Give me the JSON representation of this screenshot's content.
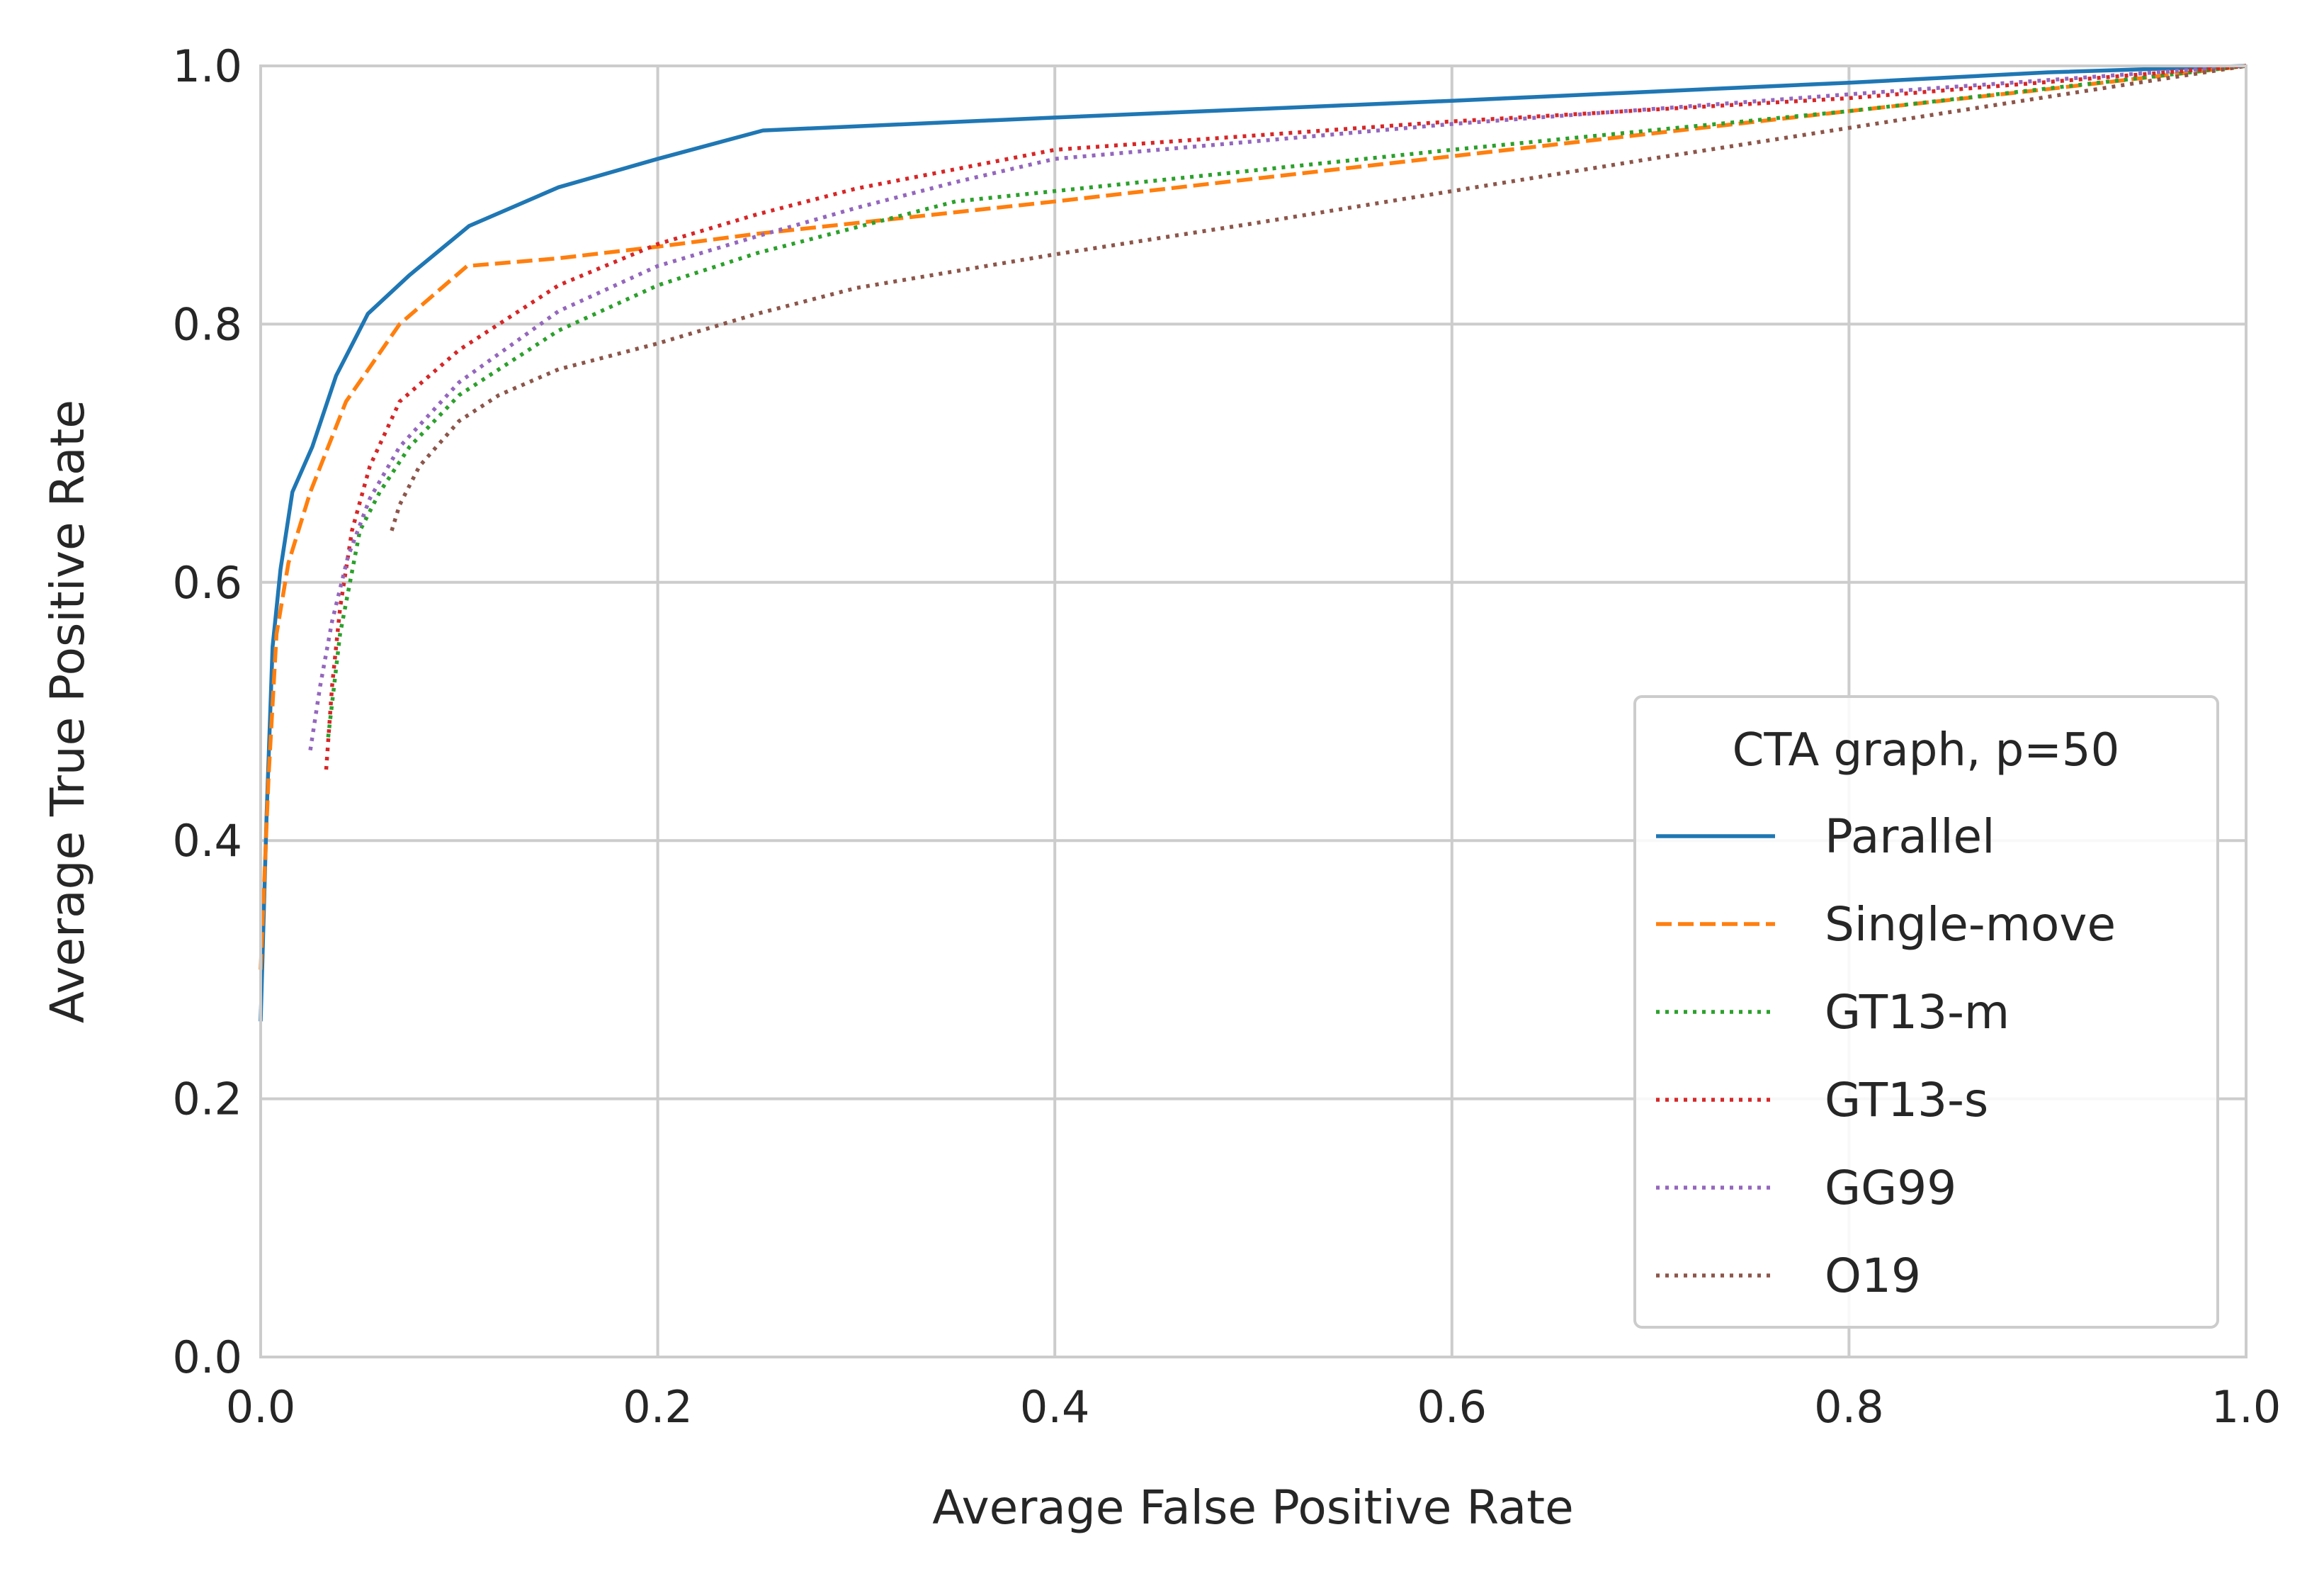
{
  "chart_data": {
    "type": "line",
    "title": "",
    "xlabel": "Average False Positive Rate",
    "ylabel": "Average True Positive Rate",
    "xlim": [
      0,
      1
    ],
    "ylim": [
      0,
      1
    ],
    "xticks": [
      "0.0",
      "0.2",
      "0.4",
      "0.6",
      "0.8",
      "1.0"
    ],
    "yticks": [
      "0.0",
      "0.2",
      "0.4",
      "0.6",
      "0.8",
      "1.0"
    ],
    "grid": true,
    "legend": {
      "title": "CTA graph, p=50",
      "position": "lower-right"
    },
    "series": [
      {
        "name": "Parallel",
        "color": "#1f77b4",
        "style": "solid",
        "x": [
          0.0,
          0.003,
          0.006,
          0.01,
          0.016,
          0.026,
          0.038,
          0.054,
          0.075,
          0.105,
          0.15,
          0.2,
          0.253,
          0.4,
          0.6,
          0.8,
          0.9,
          1.0
        ],
        "y": [
          0.26,
          0.42,
          0.55,
          0.61,
          0.67,
          0.705,
          0.76,
          0.808,
          0.838,
          0.876,
          0.906,
          0.928,
          0.95,
          0.96,
          0.973,
          0.987,
          0.995,
          1.0
        ]
      },
      {
        "name": "Single-move",
        "color": "#ff7f0e",
        "style": "dashed",
        "x": [
          0.0,
          0.004,
          0.008,
          0.014,
          0.025,
          0.043,
          0.07,
          0.104,
          0.15,
          0.2,
          0.25,
          0.4,
          0.6,
          0.8,
          0.9,
          1.0
        ],
        "y": [
          0.3,
          0.45,
          0.56,
          0.615,
          0.67,
          0.74,
          0.8,
          0.845,
          0.851,
          0.86,
          0.87,
          0.895,
          0.93,
          0.965,
          0.982,
          1.0
        ]
      },
      {
        "name": "GT13-m",
        "color": "#2ca02c",
        "style": "dotted",
        "x": [
          0.034,
          0.04,
          0.045,
          0.05,
          0.06,
          0.075,
          0.1,
          0.15,
          0.2,
          0.25,
          0.3,
          0.35,
          0.4,
          0.6,
          0.8,
          1.0
        ],
        "y": [
          0.48,
          0.56,
          0.6,
          0.64,
          0.67,
          0.705,
          0.745,
          0.795,
          0.83,
          0.855,
          0.875,
          0.895,
          0.903,
          0.935,
          0.965,
          1.0
        ]
      },
      {
        "name": "GT13-s",
        "color": "#d62728",
        "style": "dotted",
        "x": [
          0.033,
          0.036,
          0.04,
          0.046,
          0.055,
          0.07,
          0.1,
          0.15,
          0.2,
          0.25,
          0.3,
          0.35,
          0.4,
          0.6,
          0.8,
          1.0
        ],
        "y": [
          0.455,
          0.52,
          0.58,
          0.64,
          0.69,
          0.74,
          0.78,
          0.83,
          0.862,
          0.885,
          0.905,
          0.92,
          0.935,
          0.957,
          0.975,
          1.0
        ]
      },
      {
        "name": "GG99",
        "color": "#9467bd",
        "style": "dotted",
        "x": [
          0.025,
          0.03,
          0.036,
          0.044,
          0.055,
          0.07,
          0.1,
          0.15,
          0.2,
          0.25,
          0.3,
          0.35,
          0.4,
          0.6,
          0.8,
          1.0
        ],
        "y": [
          0.47,
          0.52,
          0.57,
          0.62,
          0.665,
          0.705,
          0.755,
          0.81,
          0.845,
          0.868,
          0.89,
          0.91,
          0.928,
          0.955,
          0.978,
          1.0
        ]
      },
      {
        "name": "O19",
        "color": "#8c564b",
        "style": "dotted",
        "x": [
          0.066,
          0.07,
          0.08,
          0.1,
          0.12,
          0.15,
          0.2,
          0.25,
          0.3,
          0.4,
          0.5,
          0.6,
          0.7,
          0.8,
          0.9,
          1.0
        ],
        "y": [
          0.64,
          0.66,
          0.69,
          0.725,
          0.745,
          0.765,
          0.785,
          0.808,
          0.828,
          0.854,
          0.878,
          0.903,
          0.928,
          0.952,
          0.976,
          1.0
        ]
      }
    ]
  }
}
